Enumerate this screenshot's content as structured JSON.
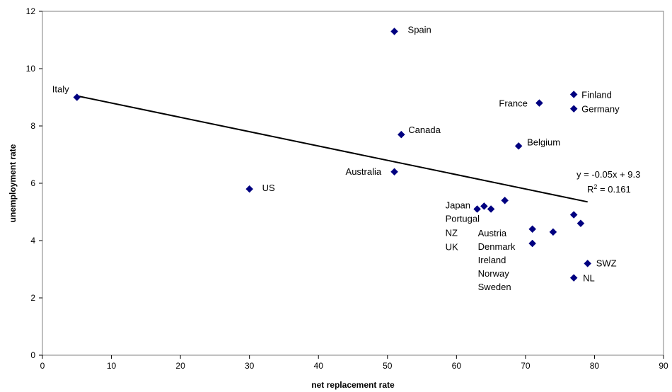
{
  "chart_data": {
    "type": "scatter",
    "xlabel": "net replacement rate",
    "ylabel": "unemployment rate",
    "xlim": [
      0,
      90
    ],
    "ylim": [
      0,
      12
    ],
    "xticks": [
      0,
      10,
      20,
      30,
      40,
      50,
      60,
      70,
      80,
      90
    ],
    "yticks": [
      0,
      2,
      4,
      6,
      8,
      10,
      12
    ],
    "marker_color": "#000080",
    "grid": false,
    "points": [
      {
        "x": 5,
        "y": 9.0
      },
      {
        "x": 51,
        "y": 11.3
      },
      {
        "x": 77,
        "y": 9.1
      },
      {
        "x": 72,
        "y": 8.8
      },
      {
        "x": 77,
        "y": 8.6
      },
      {
        "x": 52,
        "y": 7.7
      },
      {
        "x": 69,
        "y": 7.3
      },
      {
        "x": 51,
        "y": 6.4
      },
      {
        "x": 30,
        "y": 5.8
      },
      {
        "x": 63,
        "y": 5.1
      },
      {
        "x": 64,
        "y": 5.2
      },
      {
        "x": 65,
        "y": 5.1
      },
      {
        "x": 67,
        "y": 5.4
      },
      {
        "x": 71,
        "y": 4.4
      },
      {
        "x": 74,
        "y": 4.3
      },
      {
        "x": 71,
        "y": 3.9
      },
      {
        "x": 77,
        "y": 4.9
      },
      {
        "x": 78,
        "y": 4.6
      },
      {
        "x": 79,
        "y": 3.2
      },
      {
        "x": 77,
        "y": 2.7
      }
    ],
    "trendline": {
      "x": [
        5,
        79
      ],
      "y": [
        9.05,
        5.35
      ],
      "equation": "y = -0.05x + 9.3",
      "r2_prefix": "R",
      "r2_sup": "2",
      "r2_value": " = 0.161"
    },
    "labels": [
      {
        "text": "Italy",
        "x": 5,
        "y": 9.0
      },
      {
        "text": "Spain",
        "x": 51,
        "y": 11.3
      },
      {
        "text": "Finland",
        "x": 77,
        "y": 9.1
      },
      {
        "text": "France",
        "x": 72,
        "y": 8.8
      },
      {
        "text": "Germany",
        "x": 77,
        "y": 8.6
      },
      {
        "text": "Canada",
        "x": 52,
        "y": 7.7
      },
      {
        "text": "Belgium",
        "x": 69,
        "y": 7.3
      },
      {
        "text": "Australia",
        "x": 51,
        "y": 6.4
      },
      {
        "text": "US",
        "x": 30,
        "y": 5.8
      },
      {
        "text": "Japan",
        "x": 63,
        "y": 5.1
      },
      {
        "text": "Portugal",
        "x": 63,
        "y": 5.1
      },
      {
        "text": "NZ",
        "x": 63,
        "y": 5.1
      },
      {
        "text": "UK",
        "x": 63,
        "y": 5.1
      },
      {
        "text": "Austria",
        "x": 71,
        "y": 4.4
      },
      {
        "text": "Denmark",
        "x": 71,
        "y": 4.4
      },
      {
        "text": "Ireland",
        "x": 71,
        "y": 4.4
      },
      {
        "text": "Norway",
        "x": 71,
        "y": 4.4
      },
      {
        "text": "Sweden",
        "x": 71,
        "y": 4.4
      },
      {
        "text": "SWZ",
        "x": 79,
        "y": 3.2
      },
      {
        "text": "NL",
        "x": 77,
        "y": 2.7
      }
    ]
  }
}
